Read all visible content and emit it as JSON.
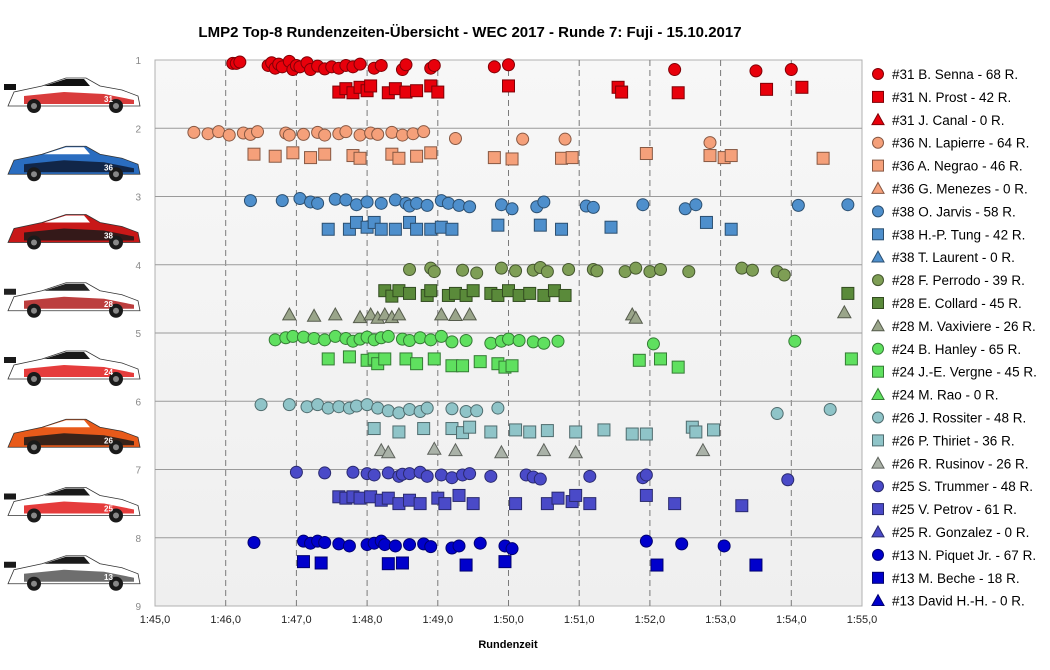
{
  "chart_data": {
    "type": "scatter",
    "title": "LMP2  Top-8  Rundenzeiten-Übersicht  - WEC 2017  - Runde 7: Fuji  - 15.10.2017",
    "xlabel": "Rundenzeit",
    "ylabel": "",
    "xlim": [
      105,
      115
    ],
    "ylim": [
      1,
      9
    ],
    "y_inverted": true,
    "x_tick_labels": [
      "1:45,0",
      "1:46,0",
      "1:47,0",
      "1:48,0",
      "1:49,0",
      "1:50,0",
      "1:51,0",
      "1:52,0",
      "1:53,0",
      "1:54,0",
      "1:55,0"
    ],
    "y_tick_labels": [
      "1",
      "2",
      "3",
      "4",
      "5",
      "6",
      "7",
      "8",
      "9"
    ],
    "grid": true,
    "legend_position": "right",
    "series": [
      {
        "name": "#31 B. Senna - 68 R.",
        "marker": "circle",
        "color": "#e8000b",
        "x": [
          106.1,
          106.15,
          106.2,
          106.6,
          106.65,
          106.7,
          106.75,
          106.8,
          106.9,
          106.95,
          107.0,
          107.05,
          107.15,
          107.2,
          107.3,
          107.4,
          107.5,
          107.6,
          107.7,
          107.8,
          107.9,
          108.1,
          108.2,
          108.5,
          108.55,
          108.9,
          108.95,
          109.8,
          110.0,
          112.35,
          113.5,
          114.0
        ],
        "y": [
          1.05,
          1.05,
          1.03,
          1.08,
          1.04,
          1.12,
          1.06,
          1.1,
          1.02,
          1.14,
          1.08,
          1.1,
          1.04,
          1.14,
          1.09,
          1.13,
          1.1,
          1.12,
          1.08,
          1.1,
          1.06,
          1.12,
          1.08,
          1.14,
          1.07,
          1.12,
          1.08,
          1.1,
          1.07,
          1.14,
          1.16,
          1.14
        ]
      },
      {
        "name": "#31 N. Prost - 42 R.",
        "marker": "square",
        "color": "#e8000b",
        "x": [
          107.6,
          107.7,
          107.8,
          107.9,
          108.0,
          108.05,
          108.3,
          108.4,
          108.55,
          108.7,
          108.9,
          109.0,
          110.0,
          111.55,
          111.6,
          112.4,
          113.65,
          114.15
        ],
        "y": [
          1.47,
          1.42,
          1.48,
          1.4,
          1.45,
          1.38,
          1.48,
          1.42,
          1.47,
          1.45,
          1.38,
          1.47,
          1.38,
          1.4,
          1.47,
          1.48,
          1.43,
          1.4
        ]
      },
      {
        "name": "#31 J. Canal - 0 R.",
        "marker": "triangle",
        "color": "#e8000b",
        "x": [],
        "y": []
      },
      {
        "name": "#36 N. Lapierre - 64 R.",
        "marker": "circle",
        "color": "#f5a07a",
        "x": [
          105.55,
          105.75,
          105.9,
          106.05,
          106.25,
          106.35,
          106.45,
          106.85,
          106.9,
          107.1,
          107.3,
          107.4,
          107.6,
          107.7,
          107.9,
          108.05,
          108.15,
          108.35,
          108.5,
          108.65,
          108.8,
          109.25,
          110.2,
          110.8,
          112.85
        ],
        "y": [
          2.06,
          2.08,
          2.05,
          2.1,
          2.07,
          2.09,
          2.05,
          2.07,
          2.1,
          2.09,
          2.06,
          2.1,
          2.08,
          2.05,
          2.1,
          2.07,
          2.09,
          2.06,
          2.1,
          2.08,
          2.05,
          2.15,
          2.16,
          2.16,
          2.21
        ]
      },
      {
        "name": "#36 A. Negrao - 46 R.",
        "marker": "square",
        "color": "#f5a07a",
        "x": [
          106.4,
          106.7,
          106.95,
          107.2,
          107.4,
          107.8,
          107.9,
          108.35,
          108.45,
          108.7,
          108.9,
          109.8,
          110.05,
          110.75,
          110.9,
          111.95,
          112.85,
          113.05,
          113.15,
          114.45
        ],
        "y": [
          2.38,
          2.41,
          2.36,
          2.43,
          2.38,
          2.4,
          2.44,
          2.38,
          2.44,
          2.41,
          2.36,
          2.43,
          2.45,
          2.44,
          2.43,
          2.37,
          2.4,
          2.43,
          2.4,
          2.44
        ]
      },
      {
        "name": "#36 G. Menezes - 0 R.",
        "marker": "triangle",
        "color": "#f5a07a",
        "x": [],
        "y": []
      },
      {
        "name": "#38 O. Jarvis - 58 R.",
        "marker": "circle",
        "color": "#4e8fcc",
        "x": [
          106.35,
          106.8,
          107.05,
          107.2,
          107.3,
          107.55,
          107.7,
          107.85,
          108.0,
          108.2,
          108.4,
          108.55,
          108.6,
          108.7,
          108.85,
          109.05,
          109.15,
          109.3,
          109.45,
          109.9,
          110.05,
          110.4,
          110.5,
          111.1,
          111.2,
          111.9,
          112.5,
          112.65,
          114.1,
          114.8
        ],
        "y": [
          3.06,
          3.06,
          3.03,
          3.08,
          3.1,
          3.04,
          3.05,
          3.12,
          3.08,
          3.1,
          3.05,
          3.1,
          3.14,
          3.1,
          3.13,
          3.06,
          3.1,
          3.13,
          3.15,
          3.12,
          3.18,
          3.15,
          3.08,
          3.14,
          3.16,
          3.12,
          3.18,
          3.12,
          3.13,
          3.12
        ]
      },
      {
        "name": "#38 H.-P. Tung - 42 R.",
        "marker": "square",
        "color": "#4e8fcc",
        "x": [
          107.45,
          107.75,
          107.85,
          108.0,
          108.1,
          108.2,
          108.4,
          108.6,
          108.7,
          108.9,
          109.05,
          109.2,
          109.85,
          110.45,
          110.75,
          111.45,
          112.8,
          113.15
        ],
        "y": [
          3.48,
          3.48,
          3.38,
          3.45,
          3.38,
          3.48,
          3.48,
          3.38,
          3.48,
          3.48,
          3.45,
          3.48,
          3.42,
          3.42,
          3.48,
          3.45,
          3.38,
          3.48
        ]
      },
      {
        "name": "#38 T. Laurent - 0 R.",
        "marker": "triangle",
        "color": "#4e8fcc",
        "x": [],
        "y": []
      },
      {
        "name": "#28 F. Perrodo - 39 R.",
        "marker": "circle",
        "color": "#7e9e55",
        "x": [
          108.6,
          108.9,
          108.95,
          109.35,
          109.55,
          109.9,
          110.1,
          110.35,
          110.45,
          110.55,
          110.85,
          111.2,
          111.25,
          111.65,
          111.8,
          112.0,
          112.15,
          112.55,
          113.3,
          113.45,
          113.8,
          113.9
        ],
        "y": [
          4.07,
          4.05,
          4.1,
          4.08,
          4.12,
          4.05,
          4.09,
          4.08,
          4.04,
          4.1,
          4.07,
          4.07,
          4.09,
          4.1,
          4.05,
          4.1,
          4.07,
          4.1,
          4.05,
          4.08,
          4.1,
          4.15
        ]
      },
      {
        "name": "#28 E. Collard - 45 R.",
        "marker": "square",
        "color": "#5a8a3a",
        "x": [
          108.25,
          108.35,
          108.45,
          108.6,
          108.85,
          108.9,
          109.15,
          109.25,
          109.4,
          109.5,
          109.75,
          109.85,
          110.0,
          110.15,
          110.3,
          110.5,
          110.65,
          110.8,
          114.8
        ],
        "y": [
          4.38,
          4.46,
          4.38,
          4.42,
          4.45,
          4.38,
          4.45,
          4.42,
          4.45,
          4.38,
          4.42,
          4.45,
          4.38,
          4.45,
          4.42,
          4.45,
          4.38,
          4.45,
          4.42
        ]
      },
      {
        "name": "#28 M. Vaxiviere - 26 R.",
        "marker": "triangle",
        "color": "#9aa58a",
        "x": [
          106.9,
          107.25,
          107.55,
          107.9,
          108.05,
          108.15,
          108.25,
          108.35,
          108.45,
          109.05,
          109.25,
          109.45,
          111.75,
          111.8,
          114.75
        ],
        "y": [
          4.73,
          4.75,
          4.73,
          4.77,
          4.73,
          4.78,
          4.73,
          4.77,
          4.73,
          4.73,
          4.74,
          4.73,
          4.73,
          4.78,
          4.7
        ]
      },
      {
        "name": "#24 B. Hanley - 65 R.",
        "marker": "circle",
        "color": "#5fe05f",
        "x": [
          106.7,
          106.85,
          106.95,
          107.1,
          107.25,
          107.4,
          107.55,
          107.7,
          107.8,
          107.9,
          108.0,
          108.1,
          108.2,
          108.3,
          108.5,
          108.6,
          108.75,
          108.9,
          109.05,
          109.2,
          109.4,
          109.75,
          109.9,
          110.0,
          110.15,
          110.35,
          110.5,
          110.7,
          112.05,
          114.05
        ],
        "y": [
          5.1,
          5.07,
          5.05,
          5.06,
          5.08,
          5.1,
          5.05,
          5.08,
          5.12,
          5.09,
          5.06,
          5.1,
          5.07,
          5.05,
          5.09,
          5.11,
          5.07,
          5.1,
          5.05,
          5.13,
          5.11,
          5.15,
          5.12,
          5.09,
          5.11,
          5.13,
          5.15,
          5.12,
          5.16,
          5.12
        ]
      },
      {
        "name": "#24 J.-E. Vergne - 45 R.",
        "marker": "square",
        "color": "#5fe05f",
        "x": [
          107.45,
          107.75,
          108.0,
          108.1,
          108.15,
          108.25,
          108.55,
          108.7,
          108.95,
          109.2,
          109.35,
          109.6,
          109.85,
          109.95,
          110.05,
          111.85,
          112.15,
          112.4,
          114.85
        ],
        "y": [
          5.38,
          5.35,
          5.4,
          5.38,
          5.45,
          5.38,
          5.38,
          5.45,
          5.38,
          5.48,
          5.48,
          5.42,
          5.45,
          5.5,
          5.48,
          5.4,
          5.38,
          5.5,
          5.38
        ]
      },
      {
        "name": "#24 M. Rao - 0 R.",
        "marker": "triangle",
        "color": "#5fe05f",
        "x": [],
        "y": []
      },
      {
        "name": "#26 J. Rossiter - 48 R.",
        "marker": "circle",
        "color": "#8fc4c8",
        "x": [
          106.5,
          106.9,
          107.15,
          107.3,
          107.45,
          107.6,
          107.75,
          107.85,
          108.0,
          108.15,
          108.3,
          108.45,
          108.6,
          108.75,
          108.85,
          109.2,
          109.4,
          109.55,
          109.85,
          113.8,
          114.55
        ],
        "y": [
          6.05,
          6.05,
          6.08,
          6.05,
          6.1,
          6.08,
          6.1,
          6.07,
          6.05,
          6.1,
          6.14,
          6.17,
          6.12,
          6.15,
          6.1,
          6.11,
          6.15,
          6.14,
          6.1,
          6.18,
          6.12
        ]
      },
      {
        "name": "#26 P. Thiriet - 36 R.",
        "marker": "square",
        "color": "#8fc4c8",
        "x": [
          108.1,
          108.45,
          108.8,
          109.2,
          109.35,
          109.45,
          109.75,
          110.1,
          110.3,
          110.55,
          110.95,
          111.35,
          111.75,
          111.95,
          112.6,
          112.65,
          112.9
        ],
        "y": [
          6.4,
          6.45,
          6.4,
          6.4,
          6.46,
          6.38,
          6.45,
          6.42,
          6.45,
          6.43,
          6.45,
          6.42,
          6.48,
          6.48,
          6.38,
          6.45,
          6.42
        ]
      },
      {
        "name": "#26 R. Rusinov - 26 R.",
        "marker": "triangle",
        "color": "#aab2a8",
        "x": [
          108.2,
          108.3,
          108.95,
          109.25,
          109.9,
          110.5,
          110.95,
          112.75
        ],
        "y": [
          6.72,
          6.75,
          6.7,
          6.72,
          6.75,
          6.72,
          6.75,
          6.72
        ]
      },
      {
        "name": "#25 S. Trummer - 48 R.",
        "marker": "circle",
        "color": "#4a4ac8",
        "x": [
          107.0,
          107.4,
          107.8,
          108.0,
          108.1,
          108.3,
          108.45,
          108.5,
          108.6,
          108.75,
          108.85,
          109.05,
          109.2,
          109.35,
          109.45,
          109.75,
          110.25,
          110.35,
          110.45,
          111.15,
          111.9,
          111.95,
          113.95
        ],
        "y": [
          7.04,
          7.05,
          7.04,
          7.06,
          7.08,
          7.05,
          7.1,
          7.07,
          7.06,
          7.04,
          7.1,
          7.08,
          7.12,
          7.08,
          7.06,
          7.1,
          7.08,
          7.11,
          7.14,
          7.1,
          7.12,
          7.08,
          7.15
        ]
      },
      {
        "name": "#25 V. Petrov - 61 R.",
        "marker": "square",
        "color": "#4a4ac8",
        "x": [
          107.6,
          107.7,
          107.8,
          107.9,
          108.05,
          108.2,
          108.3,
          108.45,
          108.6,
          108.75,
          109.0,
          109.1,
          109.3,
          109.5,
          110.1,
          110.55,
          110.7,
          110.9,
          110.95,
          111.15,
          111.95,
          112.35,
          113.3
        ],
        "y": [
          7.4,
          7.42,
          7.4,
          7.42,
          7.4,
          7.45,
          7.42,
          7.5,
          7.45,
          7.5,
          7.42,
          7.5,
          7.38,
          7.5,
          7.5,
          7.5,
          7.42,
          7.47,
          7.38,
          7.5,
          7.38,
          7.5,
          7.53
        ]
      },
      {
        "name": "#25 R. Gonzalez - 0 R.",
        "marker": "triangle",
        "color": "#4a4ac8",
        "x": [],
        "y": []
      },
      {
        "name": "#13 N. Piquet Jr. - 67 R.",
        "marker": "circle",
        "color": "#0000cc",
        "x": [
          106.4,
          107.1,
          107.2,
          107.3,
          107.4,
          107.6,
          107.75,
          108.0,
          108.1,
          108.2,
          108.25,
          108.4,
          108.6,
          108.8,
          108.9,
          109.2,
          109.3,
          109.6,
          109.95,
          110.05,
          111.95,
          112.45,
          113.05
        ],
        "y": [
          8.07,
          8.05,
          8.08,
          8.05,
          8.07,
          8.09,
          8.12,
          8.1,
          8.08,
          8.05,
          8.1,
          8.12,
          8.1,
          8.09,
          8.13,
          8.15,
          8.12,
          8.08,
          8.12,
          8.16,
          8.05,
          8.09,
          8.12
        ]
      },
      {
        "name": "#13 M. Beche - 18 R.",
        "marker": "square",
        "color": "#0000cc",
        "x": [
          107.1,
          107.35,
          108.3,
          108.5,
          109.4,
          109.95,
          112.1,
          113.5
        ],
        "y": [
          8.35,
          8.37,
          8.38,
          8.37,
          8.4,
          8.35,
          8.4,
          8.4
        ]
      },
      {
        "name": "#13 David H.-H. - 0 R.",
        "marker": "triangle",
        "color": "#0000cc",
        "x": [],
        "y": []
      }
    ],
    "row_car_images": [
      {
        "colors": [
          "#ffffff",
          "#d21a1a",
          "#111111"
        ],
        "number": "31"
      },
      {
        "colors": [
          "#2a6dc0",
          "#0d1a33",
          "#ffffff"
        ],
        "number": "36"
      },
      {
        "colors": [
          "#c81818",
          "#1a1a1a",
          "#ffffff"
        ],
        "number": "38"
      },
      {
        "colors": [
          "#ffffff",
          "#b01c1c",
          "#222222"
        ],
        "number": "28"
      },
      {
        "colors": [
          "#ffffff",
          "#e01a1a",
          "#1a1a1a"
        ],
        "number": "24"
      },
      {
        "colors": [
          "#e85a1a",
          "#1a1a1a",
          "#ffffff"
        ],
        "number": "26"
      },
      {
        "colors": [
          "#ffffff",
          "#e01a1a",
          "#1a1a1a"
        ],
        "number": "25"
      },
      {
        "colors": [
          "#ffffff",
          "#555555",
          "#1a1a1a"
        ],
        "number": "13"
      }
    ]
  }
}
